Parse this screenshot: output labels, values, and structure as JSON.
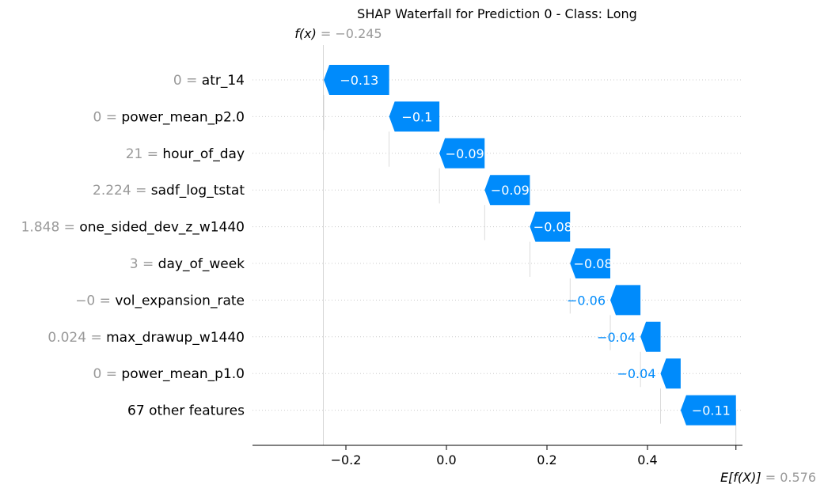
{
  "chart_data": {
    "type": "waterfall",
    "title": "SHAP Waterfall for Prediction 0 - Class: Long",
    "base_value": {
      "prefix": "E[f(X)]",
      "label": "= 0.576",
      "value": 0.576
    },
    "prediction": {
      "prefix": "f(x)",
      "label": "= −0.245",
      "value": -0.245
    },
    "features": [
      {
        "value_text": "0 = ",
        "name": "atr_14",
        "shap": -0.13,
        "label": "−0.13",
        "label_inside": true
      },
      {
        "value_text": "0 = ",
        "name": "power_mean_p2.0",
        "shap": -0.1,
        "label": "−0.1",
        "label_inside": true
      },
      {
        "value_text": "21 = ",
        "name": "hour_of_day",
        "shap": -0.09,
        "label": "−0.09",
        "label_inside": true
      },
      {
        "value_text": "2.224 = ",
        "name": "sadf_log_tstat",
        "shap": -0.09,
        "label": "−0.09",
        "label_inside": true
      },
      {
        "value_text": "1.848 = ",
        "name": "one_sided_dev_z_w1440",
        "shap": -0.08,
        "label": "−0.08",
        "label_inside": true
      },
      {
        "value_text": "3 = ",
        "name": "day_of_week",
        "shap": -0.08,
        "label": "−0.08",
        "label_inside": true
      },
      {
        "value_text": "−0 = ",
        "name": "vol_expansion_rate",
        "shap": -0.06,
        "label": "−0.06",
        "label_inside": false
      },
      {
        "value_text": "0.024 = ",
        "name": "max_drawup_w1440",
        "shap": -0.04,
        "label": "−0.04",
        "label_inside": false
      },
      {
        "value_text": "0 = ",
        "name": "power_mean_p1.0",
        "shap": -0.04,
        "label": "−0.04",
        "label_inside": false
      },
      {
        "value_text": "",
        "name": "67 other features",
        "shap": -0.11,
        "label": "−0.11",
        "label_inside": true
      }
    ],
    "x_ticks": [
      {
        "value": -0.2,
        "label": "−0.2"
      },
      {
        "value": 0.0,
        "label": "0.0"
      },
      {
        "value": 0.2,
        "label": "0.2"
      },
      {
        "value": 0.4,
        "label": "0.4"
      }
    ],
    "xlim": [
      -0.38,
      0.58
    ],
    "colors": {
      "negative": "#008bfb",
      "gridline": "#cccccc",
      "muted_text": "#999999"
    }
  }
}
